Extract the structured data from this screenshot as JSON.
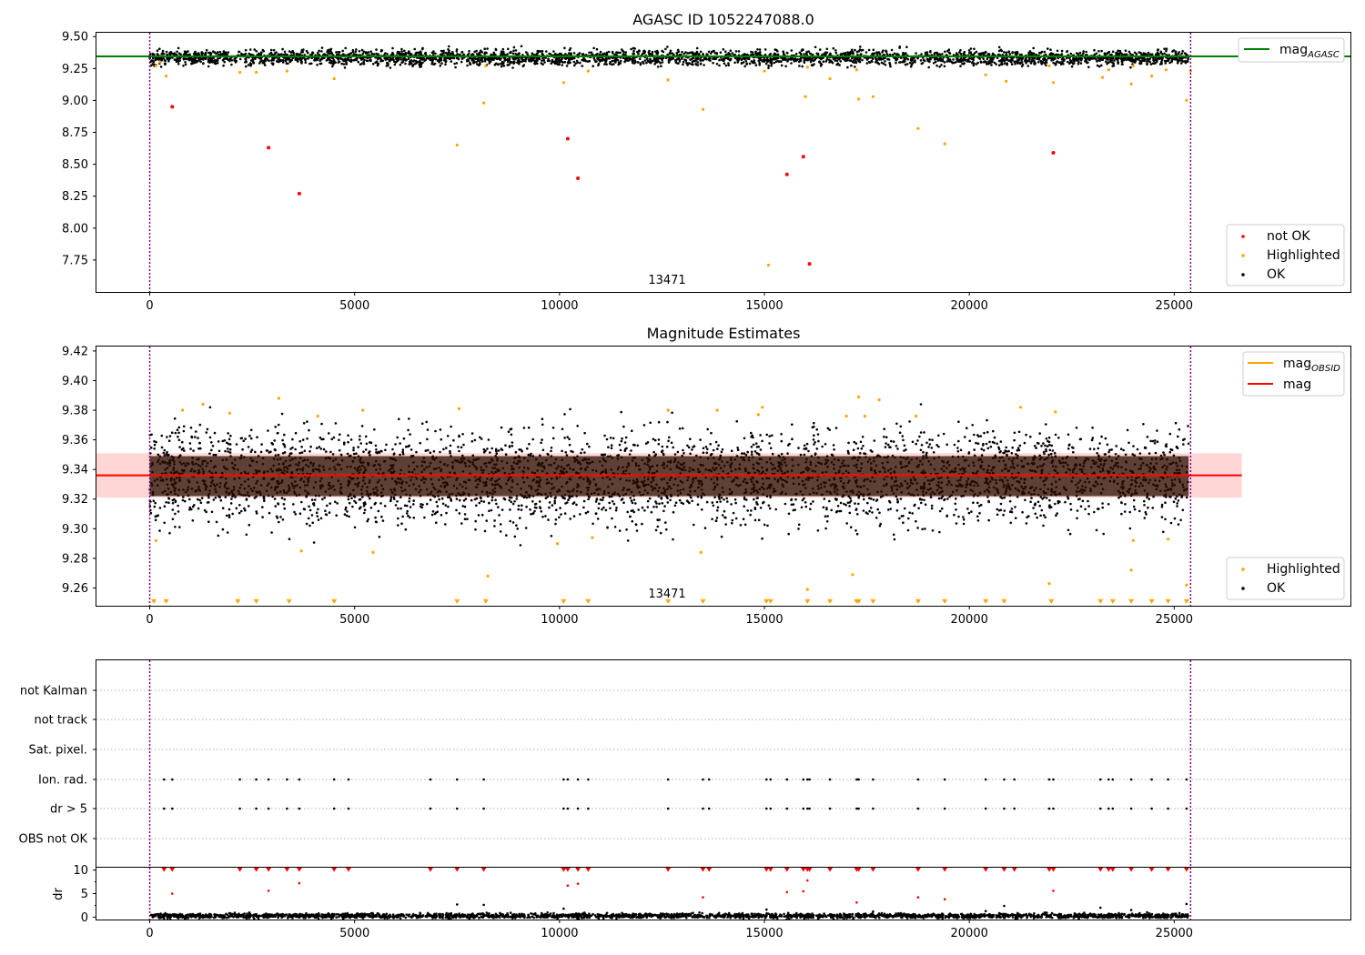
{
  "colors": {
    "ok": "#000000",
    "highlighted": "#ffa500",
    "not_ok": "#ff0000",
    "mag_agasc_line": "#008000",
    "mag_obsid_line": "#ffa500",
    "mag_line": "#ff0000",
    "mag_band": "#ffd6d6",
    "vline": "#800080",
    "dr_ok": "#000000",
    "dr_bad": "#ff0000"
  },
  "chart_data": [
    {
      "id": "top",
      "type": "scatter",
      "title": "AGASC ID 1052247088.0",
      "annotation": "13471",
      "xlim": [
        -1300,
        29300
      ],
      "ylim": [
        7.5,
        9.53
      ],
      "xticks": [
        0,
        5000,
        10000,
        15000,
        20000,
        25000
      ],
      "xtick_labels": [
        "0",
        "5000",
        "10000",
        "15000",
        "20000",
        "25000"
      ],
      "yticks": [
        7.75,
        8.0,
        8.25,
        8.5,
        8.75,
        9.0,
        9.25,
        9.5
      ],
      "ytick_labels": [
        "7.75",
        "8.00",
        "8.25",
        "8.50",
        "8.75",
        "9.00",
        "9.25",
        "9.50"
      ],
      "vlines": [
        0,
        25400
      ],
      "ok_band": {
        "x_range": [
          0,
          25350
        ],
        "center": 9.335,
        "spread": 0.03,
        "count": 3200
      },
      "hlines": [
        {
          "name": "mag_AGASC",
          "y": 9.345,
          "x_range": [
            -1300,
            29300
          ]
        }
      ],
      "series": [
        {
          "name": "not OK",
          "points": [
            [
              550,
              8.95
            ],
            [
              2900,
              8.63
            ],
            [
              3650,
              8.27
            ],
            [
              10200,
              8.7
            ],
            [
              10450,
              8.39
            ],
            [
              15550,
              8.42
            ],
            [
              15950,
              8.56
            ],
            [
              16100,
              7.72
            ],
            [
              22050,
              8.59
            ]
          ]
        },
        {
          "name": "Highlighted",
          "points": [
            [
              150,
              9.27
            ],
            [
              250,
              9.3
            ],
            [
              400,
              9.19
            ],
            [
              2200,
              9.22
            ],
            [
              2600,
              9.22
            ],
            [
              3350,
              9.23
            ],
            [
              4500,
              9.17
            ],
            [
              7500,
              8.65
            ],
            [
              8150,
              8.98
            ],
            [
              8200,
              9.27
            ],
            [
              10100,
              9.14
            ],
            [
              10700,
              9.23
            ],
            [
              12650,
              9.16
            ],
            [
              13500,
              8.93
            ],
            [
              15100,
              7.71
            ],
            [
              15000,
              9.23
            ],
            [
              16000,
              9.03
            ],
            [
              16050,
              9.26
            ],
            [
              16600,
              9.17
            ],
            [
              17250,
              9.24
            ],
            [
              17300,
              9.01
            ],
            [
              17650,
              9.03
            ],
            [
              18750,
              8.78
            ],
            [
              19400,
              8.66
            ],
            [
              20400,
              9.2
            ],
            [
              20900,
              9.15
            ],
            [
              21950,
              9.27
            ],
            [
              22050,
              9.14
            ],
            [
              23250,
              9.18
            ],
            [
              23400,
              9.24
            ],
            [
              23950,
              9.13
            ],
            [
              24000,
              9.27
            ],
            [
              24450,
              9.19
            ],
            [
              24800,
              9.24
            ],
            [
              25300,
              9.0
            ],
            [
              25400,
              9.23
            ]
          ]
        }
      ],
      "legend_upper": [
        {
          "label": "mag",
          "subscript": "AGASC"
        }
      ],
      "legend_lower": [
        {
          "label": "not OK"
        },
        {
          "label": "Highlighted"
        },
        {
          "label": "OK"
        }
      ]
    },
    {
      "id": "middle",
      "type": "scatter",
      "title": "Magnitude Estimates",
      "annotation": "13471",
      "xlim": [
        -1300,
        29300
      ],
      "ylim": [
        9.248,
        9.423
      ],
      "xticks": [
        0,
        5000,
        10000,
        15000,
        20000,
        25000
      ],
      "xtick_labels": [
        "0",
        "5000",
        "10000",
        "15000",
        "20000",
        "25000"
      ],
      "yticks": [
        9.26,
        9.28,
        9.3,
        9.32,
        9.34,
        9.36,
        9.38,
        9.4,
        9.42
      ],
      "ytick_labels": [
        "9.26",
        "9.28",
        "9.30",
        "9.32",
        "9.34",
        "9.36",
        "9.38",
        "9.40",
        "9.42"
      ],
      "vlines": [
        0,
        25400
      ],
      "band": {
        "y_range": [
          9.321,
          9.351
        ],
        "x_range": [
          -1300,
          26650
        ]
      },
      "hlines": [
        {
          "name": "mag_OBSID",
          "y": 9.336,
          "x_range": [
            -1300,
            25350
          ]
        },
        {
          "name": "mag",
          "y": 9.336,
          "x_range": [
            -1300,
            26650
          ]
        }
      ],
      "ok_band": {
        "x_range": [
          0,
          25350
        ],
        "center": 9.335,
        "spread": 0.016,
        "count": 3800
      },
      "series": [
        {
          "name": "Highlighted",
          "points": [
            [
              150,
              9.292
            ],
            [
              800,
              9.38
            ],
            [
              1300,
              9.384
            ],
            [
              1950,
              9.378
            ],
            [
              3150,
              9.388
            ],
            [
              3700,
              9.285
            ],
            [
              4100,
              9.376
            ],
            [
              5450,
              9.284
            ],
            [
              5200,
              9.38
            ],
            [
              7550,
              9.381
            ],
            [
              8250,
              9.268
            ],
            [
              9950,
              9.29
            ],
            [
              10800,
              9.294
            ],
            [
              12650,
              9.38
            ],
            [
              13450,
              9.284
            ],
            [
              13850,
              9.38
            ],
            [
              14850,
              9.377
            ],
            [
              14950,
              9.382
            ],
            [
              16050,
              9.259
            ],
            [
              17000,
              9.376
            ],
            [
              17150,
              9.269
            ],
            [
              17300,
              9.389
            ],
            [
              17450,
              9.376
            ],
            [
              17800,
              9.387
            ],
            [
              18700,
              9.376
            ],
            [
              21250,
              9.382
            ],
            [
              21950,
              9.263
            ],
            [
              22100,
              9.379
            ],
            [
              23950,
              9.272
            ],
            [
              24000,
              9.292
            ],
            [
              24850,
              9.293
            ],
            [
              25300,
              9.262
            ]
          ]
        }
      ],
      "triangles_y": 9.2505,
      "triangles_x": [
        100,
        400,
        2150,
        2600,
        3400,
        4500,
        7500,
        8200,
        10100,
        10700,
        12650,
        13500,
        15050,
        15150,
        16050,
        16600,
        17250,
        17300,
        17650,
        18750,
        19400,
        20400,
        20850,
        22000,
        23200,
        23500,
        23950,
        24450,
        24850,
        25300
      ],
      "legend_upper": [
        {
          "label": "mag",
          "subscript": "OBSID"
        },
        {
          "label": "mag"
        }
      ],
      "legend_lower": [
        {
          "label": "Highlighted"
        },
        {
          "label": "OK"
        }
      ]
    },
    {
      "id": "flags",
      "type": "scatter",
      "xlim": [
        -1300,
        29300
      ],
      "vlines": [
        0,
        25400
      ],
      "rows": [
        "not Kalman",
        "not track",
        "Sat. pixel.",
        "Ion. rad.",
        "dr > 5",
        "OBS not OK"
      ],
      "flag_x": {
        "Ion. rad.": [
          350,
          550,
          2200,
          2600,
          2900,
          3350,
          3650,
          4500,
          4850,
          6850,
          7500,
          8150,
          10100,
          10200,
          10450,
          10700,
          12650,
          13500,
          13650,
          15050,
          15150,
          15550,
          15950,
          16050,
          16100,
          16600,
          17250,
          17300,
          17650,
          18750,
          19400,
          20400,
          20850,
          21100,
          21950,
          22050,
          23200,
          23400,
          23500,
          23950,
          24450,
          24850,
          25300
        ],
        "dr > 5": [
          350,
          550,
          2200,
          2600,
          2900,
          3350,
          3650,
          4500,
          4850,
          6850,
          7500,
          8150,
          10100,
          10200,
          10450,
          10700,
          12650,
          13500,
          13650,
          15050,
          15150,
          15550,
          15950,
          16050,
          16100,
          16600,
          17250,
          17300,
          17650,
          18750,
          19400,
          20400,
          20850,
          21100,
          21950,
          22050,
          23200,
          23400,
          23500,
          23950,
          24450,
          24850,
          25300
        ]
      }
    },
    {
      "id": "dr",
      "type": "scatter",
      "ylabel": "dr",
      "xlim": [
        -1300,
        29300
      ],
      "ylim": [
        -0.5,
        10.5
      ],
      "xticks": [
        0,
        5000,
        10000,
        15000,
        20000,
        25000
      ],
      "xtick_labels": [
        "0",
        "5000",
        "10000",
        "15000",
        "20000",
        "25000"
      ],
      "yticks": [
        0,
        5,
        10
      ],
      "ytick_labels": [
        "0",
        "5",
        "10"
      ],
      "vlines": [
        0,
        25400
      ],
      "ok_band": {
        "x_range": [
          0,
          25350
        ],
        "center": 0.3,
        "spread": 0.25,
        "count": 2500
      },
      "series": [
        {
          "name": "dr large",
          "points": [
            [
              550,
              5.0
            ],
            [
              2900,
              5.6
            ],
            [
              3650,
              7.2
            ],
            [
              10200,
              6.7
            ],
            [
              10450,
              7.1
            ],
            [
              13500,
              4.2
            ],
            [
              15550,
              5.3
            ],
            [
              15950,
              5.5
            ],
            [
              16050,
              7.8
            ],
            [
              17250,
              3.1
            ],
            [
              18750,
              4.2
            ],
            [
              19400,
              3.8
            ],
            [
              22050,
              5.6
            ]
          ]
        },
        {
          "name": "dr small",
          "points": [
            [
              7500,
              2.7
            ],
            [
              8150,
              2.6
            ],
            [
              10100,
              1.8
            ],
            [
              15050,
              1.6
            ],
            [
              17650,
              1.2
            ],
            [
              20850,
              2.4
            ],
            [
              23200,
              2.0
            ],
            [
              23950,
              1.5
            ],
            [
              20400,
              1.3
            ],
            [
              25300,
              2.8
            ]
          ]
        }
      ],
      "triangles_y": 10,
      "triangles_x": [
        350,
        550,
        2200,
        2600,
        2900,
        3350,
        3650,
        4500,
        4850,
        6850,
        7500,
        8150,
        10100,
        10200,
        10450,
        10700,
        12650,
        13500,
        13650,
        15050,
        15150,
        15550,
        15950,
        16050,
        16100,
        16600,
        17250,
        17300,
        17650,
        18750,
        19400,
        20400,
        20850,
        21100,
        21950,
        22050,
        23200,
        23400,
        23500,
        23950,
        24450,
        24850,
        25300
      ]
    }
  ]
}
